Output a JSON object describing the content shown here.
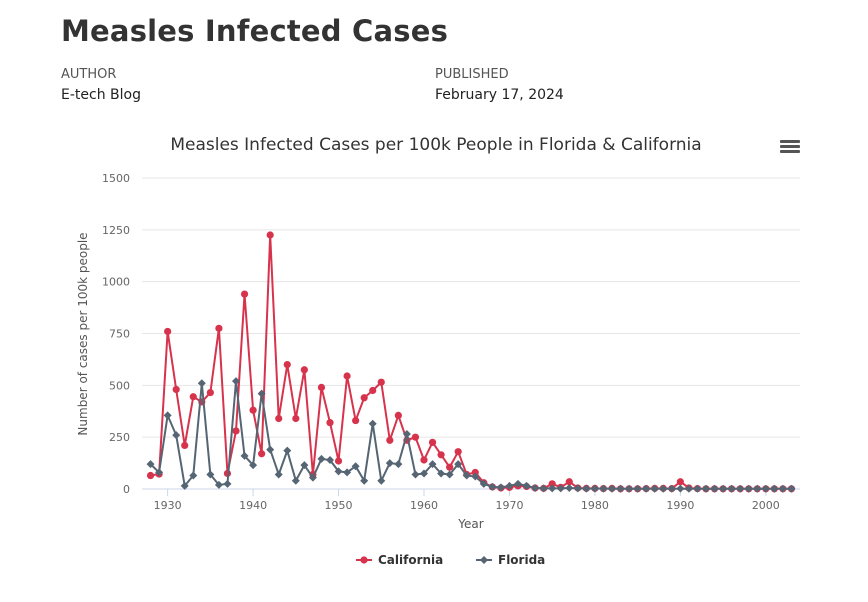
{
  "page": {
    "title": "Measles Infected Cases",
    "author_label": "AUTHOR",
    "author": "E-tech Blog",
    "published_label": "PUBLISHED",
    "published": "February 17, 2024"
  },
  "icons": {
    "menu": "hamburger-menu-icon"
  },
  "chart_data": {
    "type": "line",
    "title": "Measles Infected Cases per 100k People in Florida & California",
    "xlabel": "Year",
    "ylabel": "Number of cases per 100k people",
    "xlim": [
      1927,
      2004
    ],
    "ylim": [
      0,
      1500
    ],
    "x_ticks": [
      1930,
      1940,
      1950,
      1960,
      1970,
      1980,
      1990,
      2000
    ],
    "y_ticks": [
      0,
      250,
      500,
      750,
      1000,
      1250,
      1500
    ],
    "grid": true,
    "legend": "bottom-center",
    "x": [
      1928,
      1929,
      1930,
      1931,
      1932,
      1933,
      1934,
      1935,
      1936,
      1937,
      1938,
      1939,
      1940,
      1941,
      1942,
      1943,
      1944,
      1945,
      1946,
      1947,
      1948,
      1949,
      1950,
      1951,
      1952,
      1953,
      1954,
      1955,
      1956,
      1957,
      1958,
      1959,
      1960,
      1961,
      1962,
      1963,
      1964,
      1965,
      1966,
      1967,
      1968,
      1969,
      1970,
      1971,
      1972,
      1973,
      1974,
      1975,
      1976,
      1977,
      1978,
      1979,
      1980,
      1981,
      1982,
      1983,
      1984,
      1985,
      1986,
      1987,
      1988,
      1989,
      1990,
      1991,
      1992,
      1993,
      1994,
      1995,
      1996,
      1997,
      1998,
      1999,
      2000,
      2001,
      2002,
      2003
    ],
    "series": [
      {
        "name": "California",
        "color": "#d7334c",
        "marker": "circle",
        "values": [
          65,
          72,
          760,
          480,
          210,
          445,
          420,
          465,
          775,
          75,
          280,
          940,
          380,
          170,
          1225,
          340,
          600,
          340,
          575,
          70,
          490,
          320,
          135,
          545,
          330,
          440,
          475,
          515,
          235,
          355,
          235,
          250,
          140,
          225,
          165,
          105,
          180,
          70,
          80,
          30,
          10,
          5,
          8,
          15,
          12,
          5,
          3,
          25,
          8,
          35,
          5,
          3,
          3,
          2,
          3,
          1,
          1,
          1,
          2,
          3,
          3,
          2,
          35,
          5,
          2,
          1,
          1,
          1,
          1,
          1,
          1,
          1,
          1,
          1,
          1,
          1
        ]
      },
      {
        "name": "Florida",
        "color": "#566573",
        "marker": "diamond",
        "values": [
          120,
          80,
          355,
          260,
          15,
          65,
          510,
          70,
          20,
          25,
          520,
          160,
          115,
          460,
          190,
          70,
          185,
          40,
          115,
          55,
          145,
          140,
          85,
          80,
          110,
          40,
          315,
          40,
          125,
          120,
          265,
          70,
          75,
          120,
          75,
          70,
          120,
          65,
          60,
          25,
          10,
          8,
          15,
          25,
          15,
          5,
          3,
          3,
          3,
          5,
          3,
          2,
          2,
          2,
          1,
          1,
          1,
          1,
          1,
          1,
          1,
          1,
          2,
          1,
          1,
          1,
          1,
          1,
          1,
          1,
          1,
          1,
          1,
          1,
          1,
          1
        ]
      }
    ]
  }
}
